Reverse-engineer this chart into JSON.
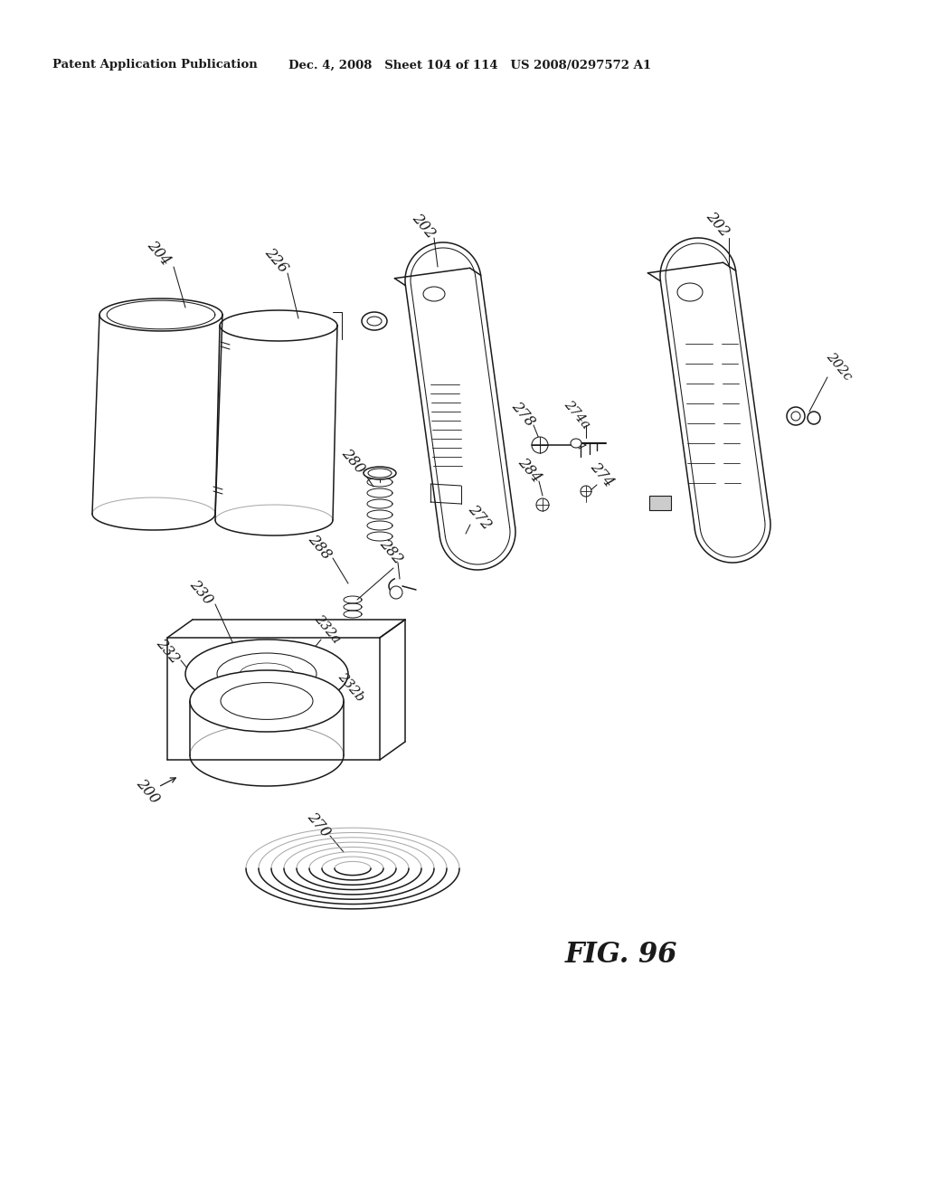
{
  "background_color": "#ffffff",
  "line_color": "#1a1a1a",
  "header_left": "Patent Application Publication",
  "header_right": "Dec. 4, 2008   Sheet 104 of 114   US 2008/0297572 A1",
  "figure_label": "FIG. 96"
}
